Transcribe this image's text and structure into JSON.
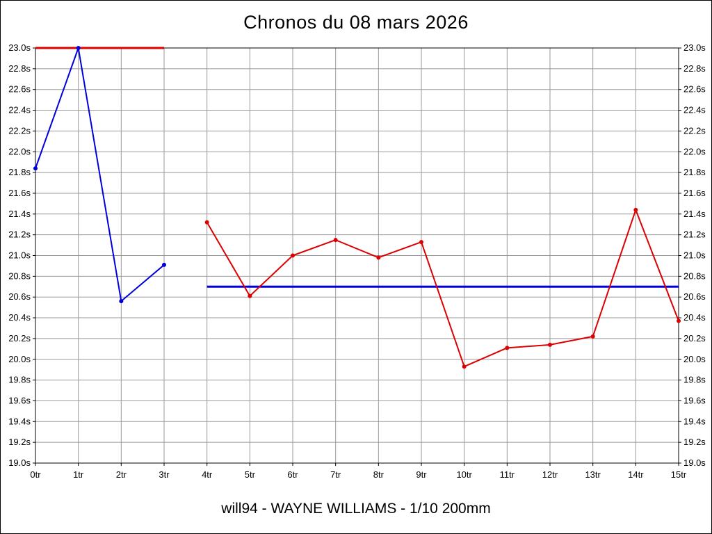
{
  "page": {
    "title": "Chronos du 08 mars 2026",
    "footer": "will94 - WAYNE WILLIAMS - 1/10 200mm"
  },
  "chart_data": {
    "type": "line",
    "title": "Chronos du 08 mars 2026",
    "xlabel": "",
    "ylabel": "",
    "x_categories": [
      "0tr",
      "1tr",
      "2tr",
      "3tr",
      "4tr",
      "5tr",
      "6tr",
      "7tr",
      "8tr",
      "9tr",
      "10tr",
      "11tr",
      "12tr",
      "13tr",
      "14tr",
      "15tr"
    ],
    "ylim": [
      19.0,
      23.0
    ],
    "y_tick_step": 0.2,
    "y_tick_suffix": "s",
    "y_axis_sides": "both",
    "grid": true,
    "grid_color": "#999999",
    "axis_color": "#000000",
    "legend": "none",
    "series": [
      {
        "name": "chronos-bleu",
        "color": "#0000dd",
        "points": [
          {
            "x": 0,
            "y": 21.84
          },
          {
            "x": 1,
            "y": 23.0
          },
          {
            "x": 2,
            "y": 20.56
          },
          {
            "x": 3,
            "y": 20.91
          }
        ]
      },
      {
        "name": "chronos-rouge",
        "color": "#dd0000",
        "points": [
          {
            "x": 4,
            "y": 21.32
          },
          {
            "x": 5,
            "y": 20.61
          },
          {
            "x": 6,
            "y": 21.0
          },
          {
            "x": 7,
            "y": 21.15
          },
          {
            "x": 8,
            "y": 20.98
          },
          {
            "x": 9,
            "y": 21.13
          },
          {
            "x": 10,
            "y": 19.93
          },
          {
            "x": 11,
            "y": 20.11
          },
          {
            "x": 12,
            "y": 20.14
          },
          {
            "x": 13,
            "y": 20.22
          },
          {
            "x": 14,
            "y": 21.44
          },
          {
            "x": 15,
            "y": 20.37
          }
        ]
      }
    ],
    "reference_lines": [
      {
        "name": "reference-line-rouge",
        "color": "#dd0000",
        "value": 23.0,
        "x_start": 0,
        "x_end": 3
      },
      {
        "name": "reference-line-bleue",
        "color": "#0000dd",
        "value": 20.7,
        "x_start": 4,
        "x_end": 15
      }
    ]
  }
}
